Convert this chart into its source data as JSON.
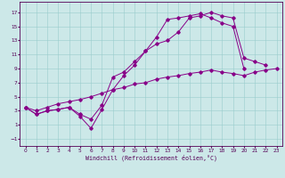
{
  "bg_color": "#cce8e8",
  "line_color": "#880088",
  "xlabel": "Windchill (Refroidissement éolien,°C)",
  "xlim": [
    -0.5,
    23.5
  ],
  "ylim": [
    -2.0,
    18.5
  ],
  "xticks": [
    0,
    1,
    2,
    3,
    4,
    5,
    6,
    7,
    8,
    9,
    10,
    11,
    12,
    13,
    14,
    15,
    16,
    17,
    18,
    19,
    20,
    21,
    22,
    23
  ],
  "yticks": [
    -1,
    1,
    3,
    5,
    7,
    9,
    11,
    13,
    15,
    17
  ],
  "line1_x": [
    0,
    1,
    2,
    3,
    4,
    5,
    6,
    7,
    8,
    9,
    10,
    11,
    12,
    13,
    14,
    15,
    16,
    17,
    18,
    19,
    20,
    21,
    22
  ],
  "line1_y": [
    3.5,
    2.5,
    3.0,
    3.2,
    3.5,
    2.2,
    0.5,
    3.2,
    6.0,
    8.0,
    9.5,
    11.5,
    12.5,
    13.0,
    14.2,
    16.2,
    16.5,
    17.0,
    16.5,
    16.2,
    10.5,
    10.0,
    9.5
  ],
  "line2_x": [
    0,
    1,
    2,
    3,
    4,
    5,
    6,
    7,
    8,
    9,
    10,
    11,
    12,
    13,
    14,
    15,
    16,
    17,
    18,
    19,
    20
  ],
  "line2_y": [
    3.5,
    2.5,
    3.0,
    3.2,
    3.5,
    2.5,
    1.8,
    3.8,
    7.8,
    8.5,
    10.0,
    11.5,
    13.5,
    16.0,
    16.2,
    16.5,
    16.8,
    16.2,
    15.5,
    15.0,
    9.0
  ],
  "line3_x": [
    0,
    1,
    2,
    3,
    4,
    5,
    6,
    7,
    8,
    9,
    10,
    11,
    12,
    13,
    14,
    15,
    16,
    17,
    18,
    19,
    20,
    21,
    22,
    23
  ],
  "line3_y": [
    3.5,
    3.0,
    3.5,
    4.0,
    4.3,
    4.6,
    5.0,
    5.5,
    6.0,
    6.3,
    6.8,
    7.0,
    7.5,
    7.8,
    8.0,
    8.3,
    8.5,
    8.8,
    8.5,
    8.3,
    8.0,
    8.5,
    8.8,
    9.0
  ]
}
